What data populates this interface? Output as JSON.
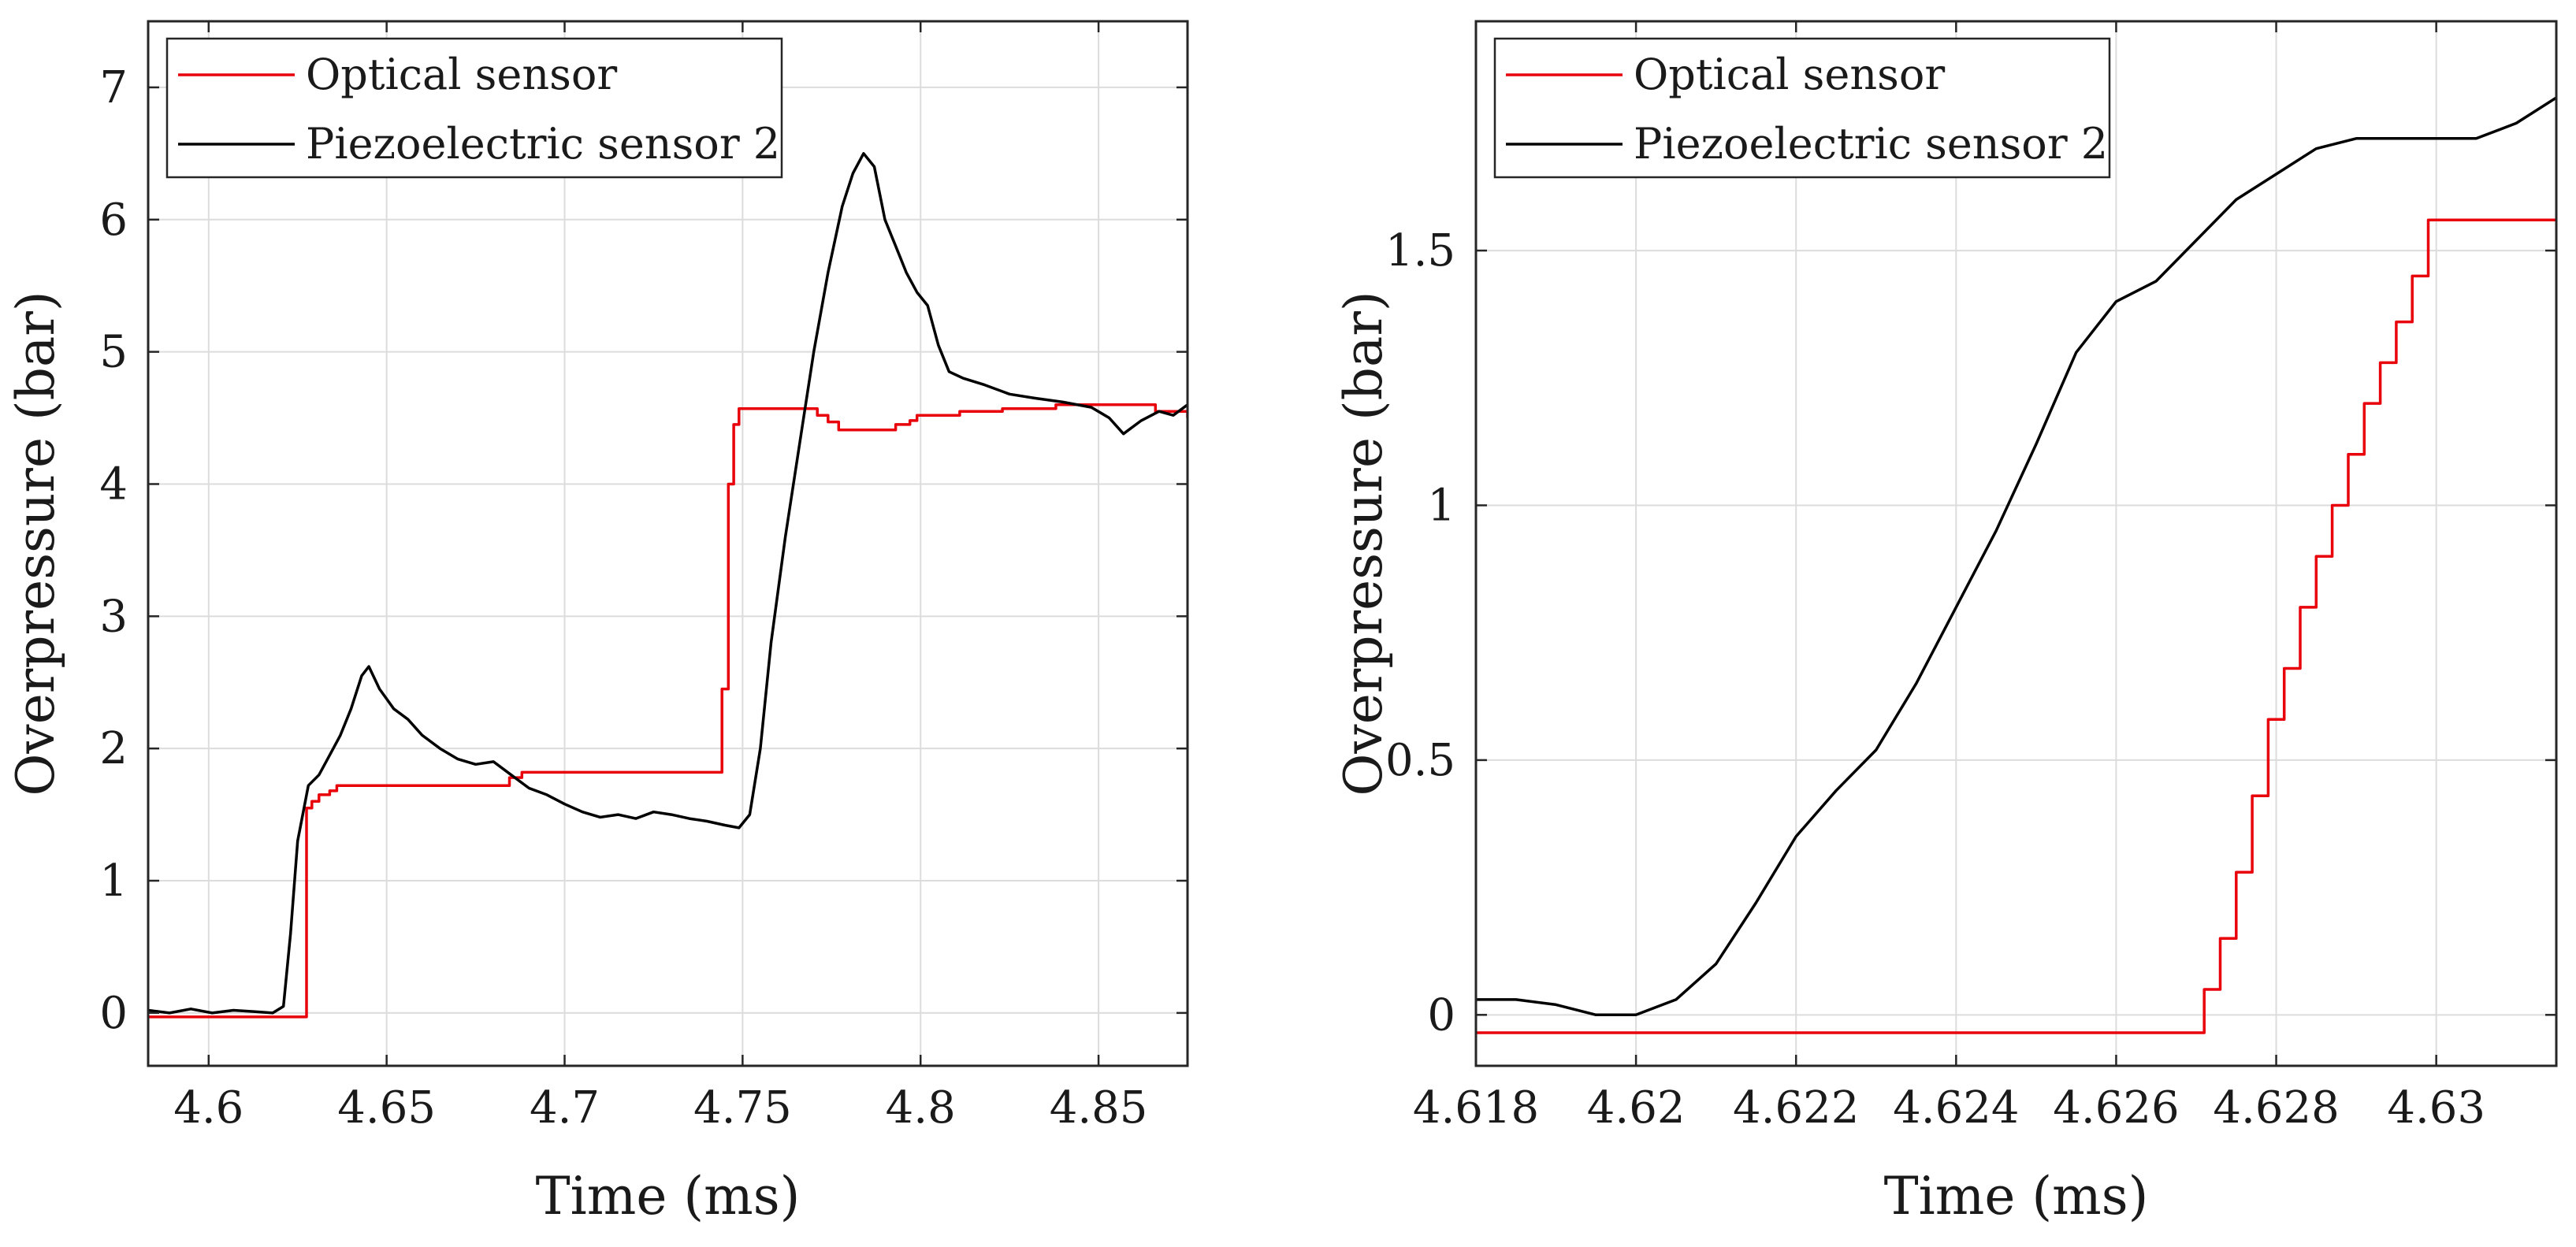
{
  "chart_data": [
    {
      "type": "line",
      "title": "",
      "xlabel": "Time (ms)",
      "ylabel": "Overpressure (bar)",
      "xlim": [
        4.583,
        4.875
      ],
      "ylim": [
        -0.4,
        7.5
      ],
      "xticks": [
        4.6,
        4.65,
        4.7,
        4.75,
        4.8,
        4.85
      ],
      "xtick_labels": [
        "4.6",
        "4.65",
        "4.7",
        "4.75",
        "4.8",
        "4.85"
      ],
      "yticks": [
        0,
        1,
        2,
        3,
        4,
        5,
        6,
        7
      ],
      "ytick_labels": [
        "0",
        "1",
        "2",
        "3",
        "4",
        "5",
        "6",
        "7"
      ],
      "grid": true,
      "legend_position": "top-left",
      "series": [
        {
          "name": "Optical sensor",
          "color": "#e8000b",
          "style": "step",
          "x": [
            4.583,
            4.626,
            4.6275,
            4.629,
            4.631,
            4.634,
            4.636,
            4.675,
            4.6845,
            4.6855,
            4.688,
            4.744,
            4.7442,
            4.7443,
            4.746,
            4.7475,
            4.749,
            4.749,
            4.75,
            4.769,
            4.771,
            4.774,
            4.777,
            4.79,
            4.793,
            4.797,
            4.799,
            4.811,
            4.823,
            4.838,
            4.853,
            4.866,
            4.871,
            4.875
          ],
          "y": [
            -0.03,
            -0.03,
            1.55,
            1.6,
            1.65,
            1.68,
            1.72,
            1.72,
            1.78,
            1.78,
            1.82,
            1.82,
            2.45,
            2.45,
            4.0,
            4.45,
            4.57,
            4.57,
            4.57,
            4.57,
            4.52,
            4.47,
            4.41,
            4.41,
            4.45,
            4.48,
            4.52,
            4.55,
            4.57,
            4.6,
            4.6,
            4.55,
            4.55,
            4.5
          ]
        },
        {
          "name": "Piezoelectric sensor 2",
          "color": "#000000",
          "style": "line",
          "x": [
            4.583,
            4.589,
            4.595,
            4.601,
            4.607,
            4.613,
            4.618,
            4.621,
            4.623,
            4.625,
            4.628,
            4.631,
            4.634,
            4.637,
            4.64,
            4.643,
            4.645,
            4.648,
            4.652,
            4.656,
            4.66,
            4.665,
            4.67,
            4.675,
            4.68,
            4.685,
            4.69,
            4.695,
            4.7,
            4.705,
            4.71,
            4.715,
            4.72,
            4.725,
            4.73,
            4.735,
            4.74,
            4.745,
            4.749,
            4.752,
            4.755,
            4.758,
            4.762,
            4.766,
            4.77,
            4.774,
            4.778,
            4.781,
            4.784,
            4.787,
            4.79,
            4.793,
            4.796,
            4.799,
            4.802,
            4.805,
            4.808,
            4.812,
            4.818,
            4.825,
            4.832,
            4.84,
            4.848,
            4.853,
            4.857,
            4.862,
            4.867,
            4.871,
            4.875
          ],
          "y": [
            0.02,
            0.0,
            0.03,
            0.0,
            0.02,
            0.01,
            0.0,
            0.05,
            0.6,
            1.3,
            1.72,
            1.8,
            1.95,
            2.1,
            2.3,
            2.55,
            2.62,
            2.45,
            2.3,
            2.22,
            2.1,
            2.0,
            1.92,
            1.88,
            1.9,
            1.8,
            1.7,
            1.65,
            1.58,
            1.52,
            1.48,
            1.5,
            1.47,
            1.52,
            1.5,
            1.47,
            1.45,
            1.42,
            1.4,
            1.5,
            2.0,
            2.8,
            3.6,
            4.3,
            5.0,
            5.6,
            6.1,
            6.35,
            6.5,
            6.4,
            6.0,
            5.8,
            5.6,
            5.45,
            5.35,
            5.05,
            4.85,
            4.8,
            4.75,
            4.68,
            4.65,
            4.62,
            4.58,
            4.5,
            4.38,
            4.48,
            4.55,
            4.52,
            4.6
          ]
        }
      ]
    },
    {
      "type": "line",
      "title": "",
      "xlabel": "Time (ms)",
      "ylabel": "Overpressure (bar)",
      "xlim": [
        4.618,
        4.6315
      ],
      "ylim": [
        -0.1,
        1.95
      ],
      "xticks": [
        4.618,
        4.62,
        4.622,
        4.624,
        4.626,
        4.628,
        4.63
      ],
      "xtick_labels": [
        "4.618",
        "4.62",
        "4.622",
        "4.624",
        "4.626",
        "4.628",
        "4.63"
      ],
      "yticks": [
        0,
        0.5,
        1,
        1.5
      ],
      "ytick_labels": [
        "0",
        "0.5",
        "1",
        "1.5"
      ],
      "grid": true,
      "legend_position": "top-left",
      "series": [
        {
          "name": "Optical sensor",
          "color": "#e8000b",
          "style": "step",
          "x": [
            4.618,
            4.627,
            4.6271,
            4.6273,
            4.6275,
            4.6277,
            4.6279,
            4.6281,
            4.6283,
            4.6285,
            4.6287,
            4.6289,
            4.6291,
            4.6293,
            4.6295,
            4.6297,
            4.6299,
            4.6315
          ],
          "y": [
            -0.035,
            -0.035,
            0.05,
            0.15,
            0.28,
            0.43,
            0.58,
            0.68,
            0.8,
            0.9,
            1.0,
            1.1,
            1.2,
            1.28,
            1.36,
            1.45,
            1.56,
            1.56
          ]
        },
        {
          "name": "Piezoelectric sensor 2",
          "color": "#000000",
          "style": "line",
          "x": [
            4.618,
            4.6185,
            4.619,
            4.6195,
            4.62,
            4.6205,
            4.621,
            4.6215,
            4.622,
            4.6225,
            4.623,
            4.6235,
            4.624,
            4.6245,
            4.625,
            4.6255,
            4.626,
            4.6265,
            4.627,
            4.6275,
            4.628,
            4.6285,
            4.629,
            4.6295,
            4.63,
            4.6305,
            4.631,
            4.6315
          ],
          "y": [
            0.03,
            0.03,
            0.02,
            0.0,
            0.0,
            0.03,
            0.1,
            0.22,
            0.35,
            0.44,
            0.52,
            0.65,
            0.8,
            0.95,
            1.12,
            1.3,
            1.4,
            1.44,
            1.52,
            1.6,
            1.65,
            1.7,
            1.72,
            1.72,
            1.72,
            1.72,
            1.75,
            1.8
          ]
        }
      ]
    }
  ]
}
